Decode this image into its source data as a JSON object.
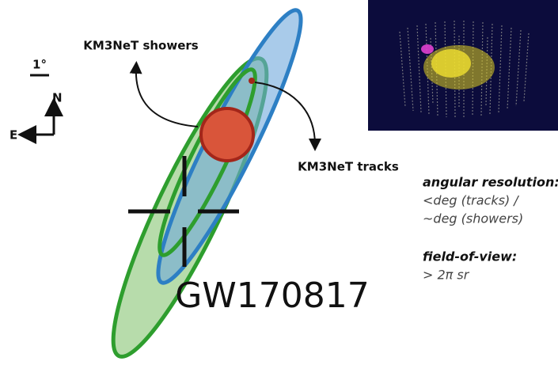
{
  "annotations": {
    "showers": "KM3NeT showers",
    "tracks": "KM3NeT tracks"
  },
  "scale": "1°",
  "compass": {
    "north": "N",
    "east": "E"
  },
  "event": "GW170817",
  "notes": [
    {
      "title": "angular resolution:",
      "lines": [
        "<deg (tracks) /",
        "~deg (showers)"
      ]
    },
    {
      "title": "field-of-view:",
      "lines": [
        "> 2π sr"
      ]
    }
  ]
}
